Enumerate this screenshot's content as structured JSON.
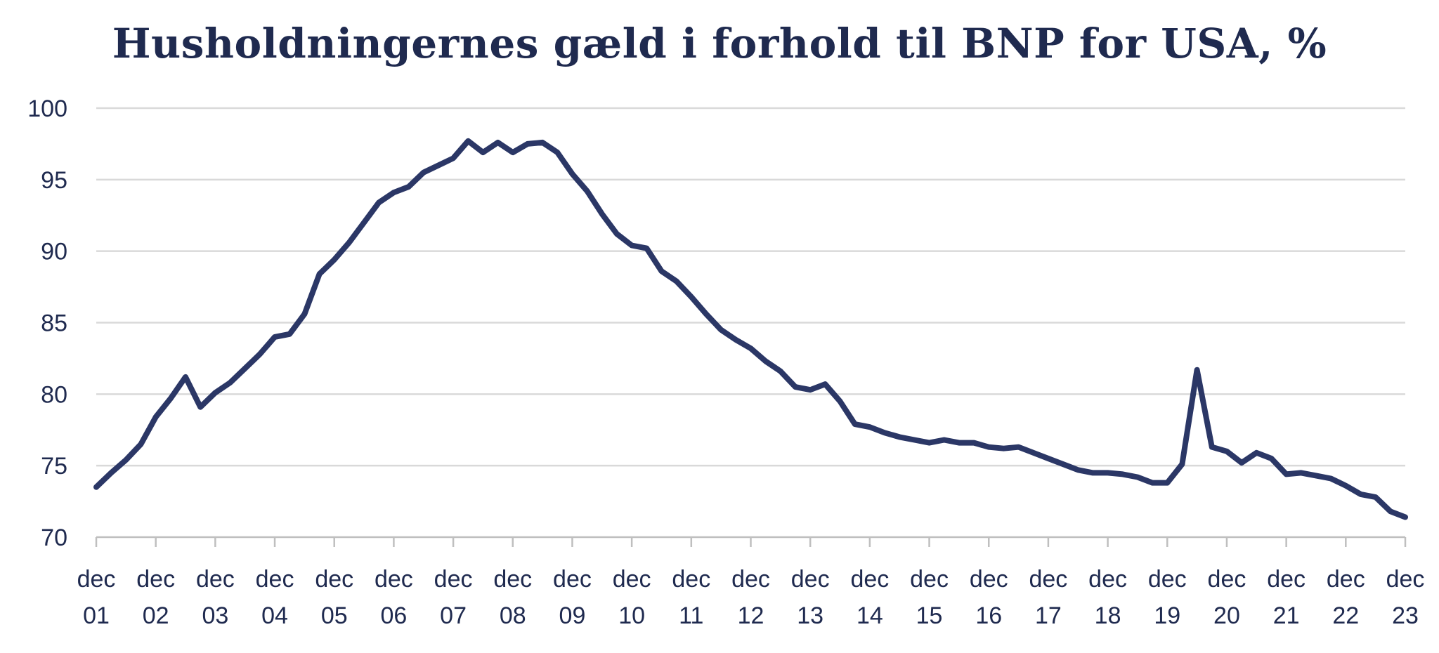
{
  "chart_data": {
    "type": "line",
    "title": "Husholdningernes gæld i forhold til BNP for USA, %",
    "xlabel": "",
    "ylabel": "",
    "ylim": [
      70,
      100
    ],
    "yticks": [
      "70",
      "75",
      "80",
      "85",
      "90",
      "95",
      "100"
    ],
    "grid": true,
    "x_tick_labels": [
      {
        "line1": "dec",
        "line2": "01"
      },
      {
        "line1": "dec",
        "line2": "02"
      },
      {
        "line1": "dec",
        "line2": "03"
      },
      {
        "line1": "dec",
        "line2": "04"
      },
      {
        "line1": "dec",
        "line2": "05"
      },
      {
        "line1": "dec",
        "line2": "06"
      },
      {
        "line1": "dec",
        "line2": "07"
      },
      {
        "line1": "dec",
        "line2": "08"
      },
      {
        "line1": "dec",
        "line2": "09"
      },
      {
        "line1": "dec",
        "line2": "10"
      },
      {
        "line1": "dec",
        "line2": "11"
      },
      {
        "line1": "dec",
        "line2": "12"
      },
      {
        "line1": "dec",
        "line2": "13"
      },
      {
        "line1": "dec",
        "line2": "14"
      },
      {
        "line1": "dec",
        "line2": "15"
      },
      {
        "line1": "dec",
        "line2": "16"
      },
      {
        "line1": "dec",
        "line2": "17"
      },
      {
        "line1": "dec",
        "line2": "18"
      },
      {
        "line1": "dec",
        "line2": "19"
      },
      {
        "line1": "dec",
        "line2": "20"
      },
      {
        "line1": "dec",
        "line2": "21"
      },
      {
        "line1": "dec",
        "line2": "22"
      },
      {
        "line1": "dec",
        "line2": "23"
      }
    ],
    "series": [
      {
        "color": "#2b3766",
        "values": [
          73.5,
          74.5,
          75.4,
          76.5,
          78.4,
          79.7,
          81.2,
          79.1,
          80.1,
          80.8,
          81.8,
          82.8,
          84.0,
          84.2,
          85.6,
          88.4,
          89.4,
          90.6,
          92.0,
          93.4,
          94.1,
          94.5,
          95.5,
          96.0,
          96.5,
          97.7,
          96.9,
          97.6,
          96.9,
          97.5,
          97.6,
          96.9,
          95.4,
          94.2,
          92.6,
          91.2,
          90.4,
          90.2,
          88.6,
          87.9,
          86.8,
          85.6,
          84.5,
          83.8,
          83.2,
          82.3,
          81.6,
          80.5,
          80.3,
          80.7,
          79.5,
          77.9,
          77.7,
          77.3,
          77.0,
          76.8,
          76.6,
          76.8,
          76.6,
          76.6,
          76.3,
          76.2,
          76.3,
          75.9,
          75.5,
          75.1,
          74.7,
          74.5,
          74.5,
          74.4,
          74.2,
          73.8,
          73.8,
          75.1,
          81.7,
          76.3,
          76.0,
          75.2,
          75.9,
          75.5,
          74.4,
          74.5,
          74.3,
          74.1,
          73.6,
          73.0,
          72.8,
          71.8,
          71.4
        ]
      }
    ]
  }
}
